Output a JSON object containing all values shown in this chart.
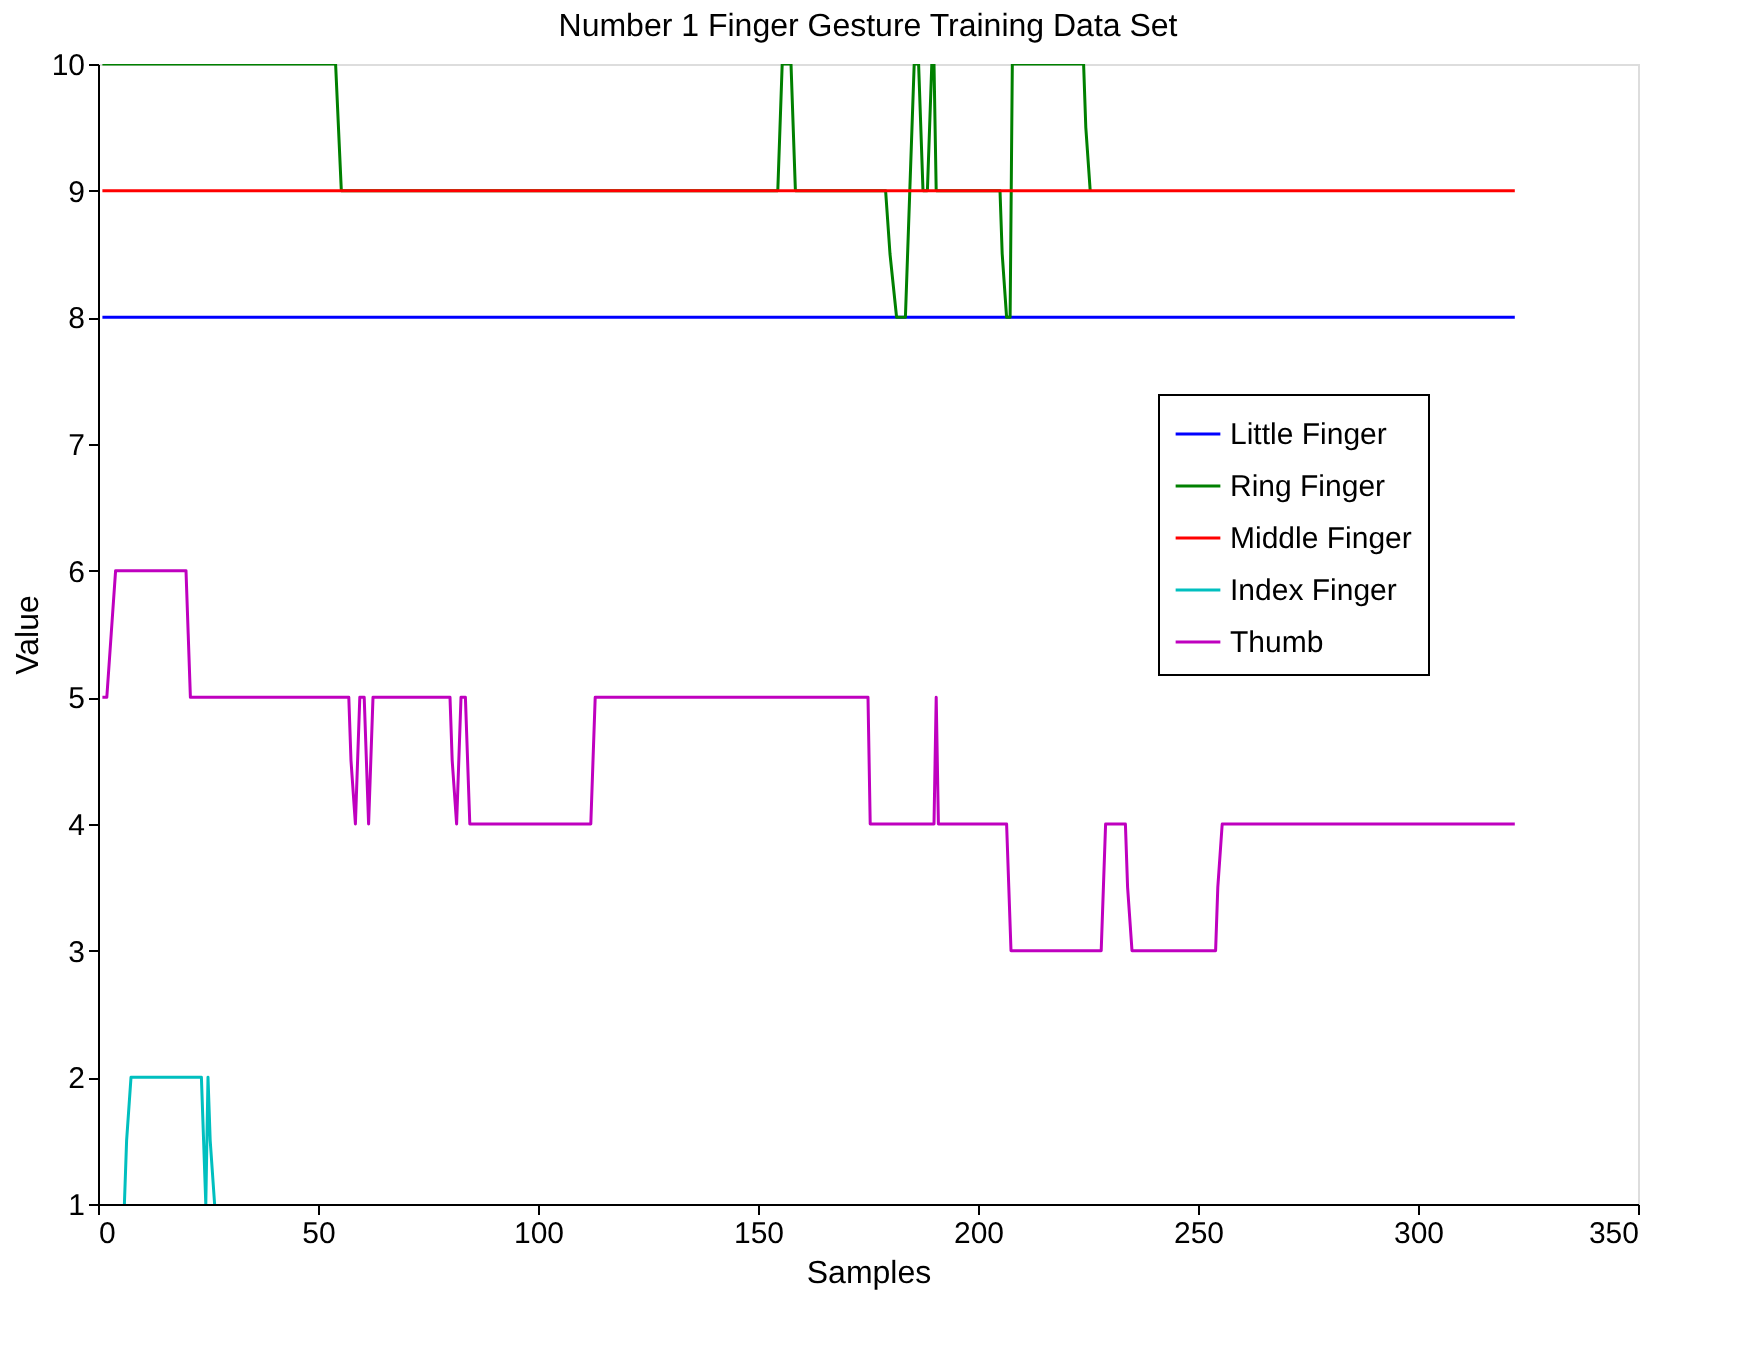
{
  "chart_data": {
    "type": "line",
    "title": "Number 1 Finger Gesture Training Data Set",
    "xlabel": "Samples",
    "ylabel": "Value",
    "xlim": [
      0,
      350
    ],
    "xticks": [
      0,
      50,
      100,
      150,
      200,
      250,
      300,
      350
    ],
    "ylim": [
      1,
      10
    ],
    "yticks": [
      1,
      2,
      3,
      4,
      5,
      6,
      7,
      8,
      9,
      10
    ],
    "grid": false,
    "legend": "right",
    "line_style": "solid",
    "series": [
      {
        "name": "Little Finger",
        "color": "#0000ff",
        "x": [
          1,
          322
        ],
        "values": [
          8,
          8
        ]
      },
      {
        "name": "Ring Finger",
        "color": "#008000",
        "x": [
          1,
          54,
          55.3,
          154.5,
          155.5,
          157.5,
          158.5,
          179,
          180,
          181.5,
          183.5,
          184.5,
          185.5,
          186.5,
          187.5,
          188.5,
          189.5,
          190,
          190.5,
          205,
          205.5,
          206.5,
          207.3,
          207.8,
          224,
          224.5,
          225.5
        ],
        "values": [
          10,
          10,
          9,
          9,
          10,
          10,
          9,
          9,
          8.5,
          8,
          8,
          9,
          10,
          10,
          9,
          9,
          10,
          10,
          9,
          9,
          8.5,
          8,
          8,
          10,
          10,
          9.5,
          9
        ]
      },
      {
        "name": "Middle Finger",
        "color": "#ff0000",
        "x": [
          1,
          322
        ],
        "values": [
          9,
          9
        ]
      },
      {
        "name": "Index Finger",
        "color": "#00bfbf",
        "x": [
          6,
          6.5,
          7.5,
          23.5,
          24,
          24.5,
          25,
          25.5,
          26.5
        ],
        "values": [
          1,
          1.5,
          2,
          2,
          1.5,
          1,
          2,
          1.5,
          1
        ]
      },
      {
        "name": "Thumb",
        "color": "#bf00bf",
        "x": [
          1,
          2,
          3,
          4,
          20,
          20.5,
          21,
          57,
          57.5,
          58.5,
          59.5,
          60.5,
          61.5,
          62.5,
          80,
          80.5,
          81.5,
          82.5,
          83.5,
          84.5,
          112,
          112.5,
          113,
          175,
          175.5,
          190,
          190.5,
          191,
          206.5,
          207,
          207.5,
          228,
          228.5,
          229,
          233.5,
          234,
          235,
          254,
          254.5,
          255.5,
          322
        ],
        "values": [
          5,
          5,
          5.5,
          6,
          6,
          5.5,
          5,
          5,
          4.5,
          4,
          5,
          5,
          4,
          5,
          5,
          4.5,
          4,
          5,
          5,
          4,
          4,
          4.5,
          5,
          5,
          4,
          4,
          5,
          4,
          4,
          3.5,
          3,
          3,
          3.5,
          4,
          4,
          3.5,
          3,
          3,
          3.5,
          4,
          4
        ]
      }
    ]
  }
}
